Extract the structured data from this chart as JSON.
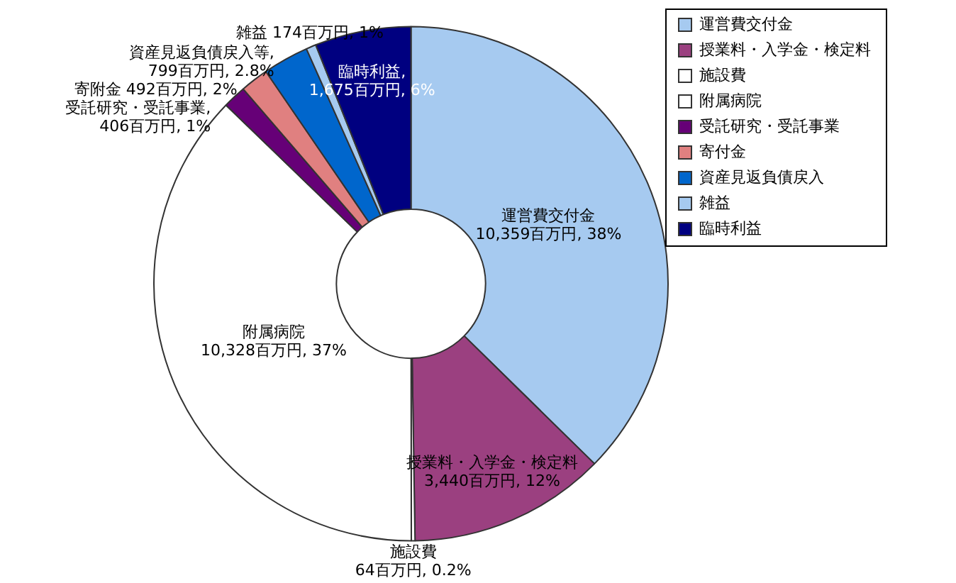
{
  "chart_data": {
    "type": "donut",
    "categories": [
      "運営費交付金",
      "授業料・入学金・検定料",
      "施設費",
      "附属病院",
      "受託研究・受託事業",
      "寄付金",
      "資産見返負債戻入",
      "雑益",
      "臨時利益"
    ],
    "values": [
      10359,
      3440,
      64,
      10328,
      406,
      492,
      799,
      174,
      1675
    ],
    "colors": [
      "#a6caf0",
      "#9b4080",
      "#ffffff",
      "#ffffff",
      "#660077",
      "#e08080",
      "#0066cc",
      "#a6caf0",
      "#000080"
    ],
    "value_labels": [
      "運営費交付金\n10,359百万円, 38%",
      "授業料・入学金・検定料\n3,440百万円, 12%",
      "施設費\n64百万円, 0.2%",
      "附属病院\n10,328百万円, 37%",
      "受託研究・受託事業,\n406百万円, 1%",
      "寄附金 492百万円, 2%",
      "資産見返負債戻入等,\n799百万円, 2.8%",
      "雑益 174百万円, 1%",
      "臨時利益,\n1,675百万円, 6%"
    ],
    "legend": "top right"
  }
}
